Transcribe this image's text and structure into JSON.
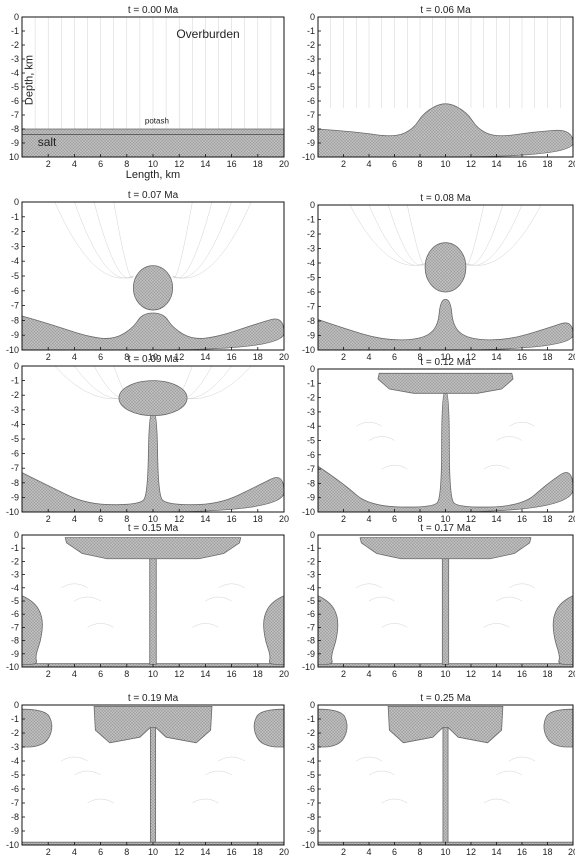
{
  "figure": {
    "colors": {
      "salt_fill": "#bdbdbd",
      "salt_hatch": "#8f8f8f",
      "salt_edge": "#6a6a6a",
      "frame": "#111111",
      "background": "#ffffff",
      "flow_lines": "#d2d2d2"
    },
    "axes": {
      "x_ticks": [
        "2",
        "4",
        "6",
        "8",
        "10",
        "12",
        "14",
        "16",
        "18",
        "20"
      ],
      "x_range_km": [
        0,
        20
      ],
      "y_range_km": [
        -10,
        10
      ],
      "first_panel_y_ticks": [
        "0",
        "-1",
        "-2",
        "-3",
        "-4",
        "-5",
        "-6",
        "-7",
        "-8",
        "-9",
        "10"
      ],
      "other_panel_y_ticks": [
        "0",
        "-1",
        "-2",
        "-3",
        "-4",
        "-5",
        "-6",
        "-7",
        "-8",
        "-9",
        "-10"
      ],
      "xlabel": "Length, km",
      "ylabel": "Depth, km"
    },
    "labels": {
      "overburden": "Overburden",
      "potash": "potash",
      "salt": "salt"
    },
    "panels": [
      {
        "title": "t = 0.00 Ma",
        "stage": "layer"
      },
      {
        "title": "t = 0.06 Ma",
        "stage": "bump"
      },
      {
        "title": "t = 0.07 Ma",
        "stage": "dome"
      },
      {
        "title": "t = 0.08 Ma",
        "stage": "diapir"
      },
      {
        "title": "t = 0.09 Ma",
        "stage": "cap"
      },
      {
        "title": "t = 0.12 Ma",
        "stage": "canopy"
      },
      {
        "title": "t = 0.15 Ma",
        "stage": "wide"
      },
      {
        "title": "t = 0.17 Ma",
        "stage": "wide"
      },
      {
        "title": "t = 0.19 Ma",
        "stage": "sheet"
      },
      {
        "title": "t = 0.25 Ma",
        "stage": "sheet"
      }
    ]
  }
}
